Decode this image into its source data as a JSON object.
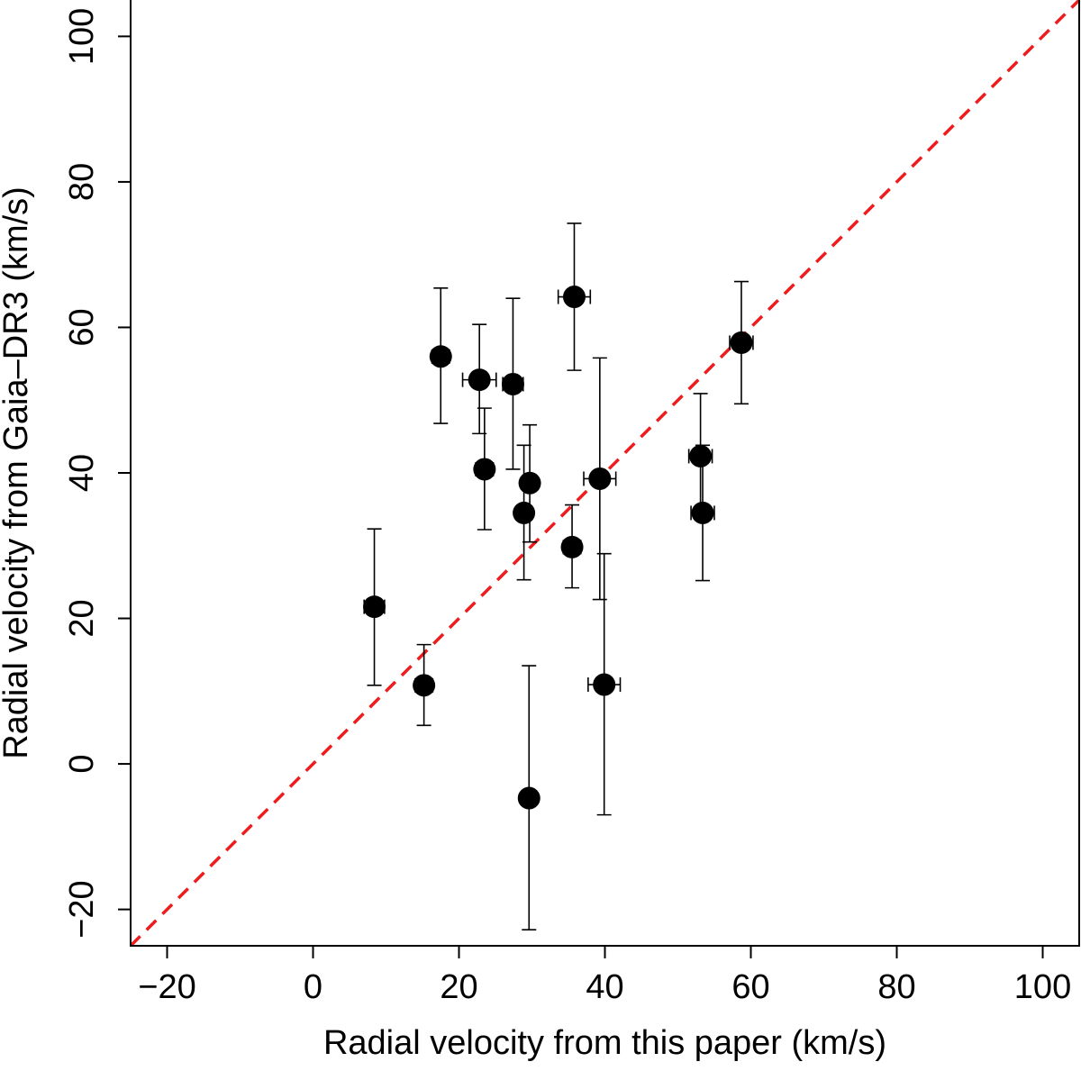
{
  "chart_data": {
    "type": "scatter",
    "title": "",
    "xlabel": "Radial velocity from this paper (km/s)",
    "ylabel": "Radial velocity from Gaia–DR3 (km/s)",
    "xlim": [
      -25,
      105
    ],
    "ylim": [
      -25,
      105
    ],
    "xticks": [
      -20,
      0,
      20,
      40,
      60,
      80,
      100
    ],
    "yticks": [
      -20,
      0,
      20,
      40,
      60,
      80,
      100
    ],
    "xtick_labels": [
      "−20",
      "0",
      "20",
      "40",
      "60",
      "80",
      "100"
    ],
    "ytick_labels": [
      "−20",
      "0",
      "20",
      "40",
      "60",
      "80",
      "100"
    ],
    "grid": false,
    "legend": "none",
    "marker_color": "#000000",
    "reference_line": {
      "type": "y=x",
      "style": "dashed",
      "color": "#ee1c1c"
    },
    "points": [
      {
        "x": 8.4,
        "y": 21.6,
        "xerr": 1.4,
        "yerr_low": 10.8,
        "yerr_high": 10.7
      },
      {
        "x": 15.2,
        "y": 10.8,
        "xerr": 1.2,
        "yerr_low": 5.5,
        "yerr_high": 5.6
      },
      {
        "x": 17.5,
        "y": 56.0,
        "xerr": 1.2,
        "yerr_low": 9.2,
        "yerr_high": 9.4
      },
      {
        "x": 22.8,
        "y": 52.8,
        "xerr": 2.3,
        "yerr_low": 7.4,
        "yerr_high": 7.6
      },
      {
        "x": 23.5,
        "y": 40.5,
        "xerr": 1.2,
        "yerr_low": 8.3,
        "yerr_high": 8.4
      },
      {
        "x": 27.4,
        "y": 52.2,
        "xerr": 1.4,
        "yerr_low": 11.7,
        "yerr_high": 11.8
      },
      {
        "x": 28.9,
        "y": 34.5,
        "xerr": 1.1,
        "yerr_low": 9.2,
        "yerr_high": 9.3
      },
      {
        "x": 29.7,
        "y": 38.6,
        "xerr": 1.0,
        "yerr_low": 8.1,
        "yerr_high": 8.0
      },
      {
        "x": 29.6,
        "y": -4.7,
        "xerr": 1.0,
        "yerr_low": 18.1,
        "yerr_high": 18.2
      },
      {
        "x": 35.5,
        "y": 29.8,
        "xerr": 1.2,
        "yerr_low": 5.6,
        "yerr_high": 5.8
      },
      {
        "x": 35.8,
        "y": 64.2,
        "xerr": 2.2,
        "yerr_low": 10.1,
        "yerr_high": 10.1
      },
      {
        "x": 39.3,
        "y": 39.2,
        "xerr": 2.2,
        "yerr_low": 16.6,
        "yerr_high": 16.6
      },
      {
        "x": 39.9,
        "y": 10.9,
        "xerr": 2.2,
        "yerr_low": 17.9,
        "yerr_high": 18.0
      },
      {
        "x": 53.1,
        "y": 42.3,
        "xerr": 1.6,
        "yerr_low": 8.5,
        "yerr_high": 8.6
      },
      {
        "x": 53.4,
        "y": 34.5,
        "xerr": 1.6,
        "yerr_low": 9.3,
        "yerr_high": 9.3
      },
      {
        "x": 58.7,
        "y": 57.9,
        "xerr": 1.6,
        "yerr_low": 8.4,
        "yerr_high": 8.4
      }
    ]
  }
}
